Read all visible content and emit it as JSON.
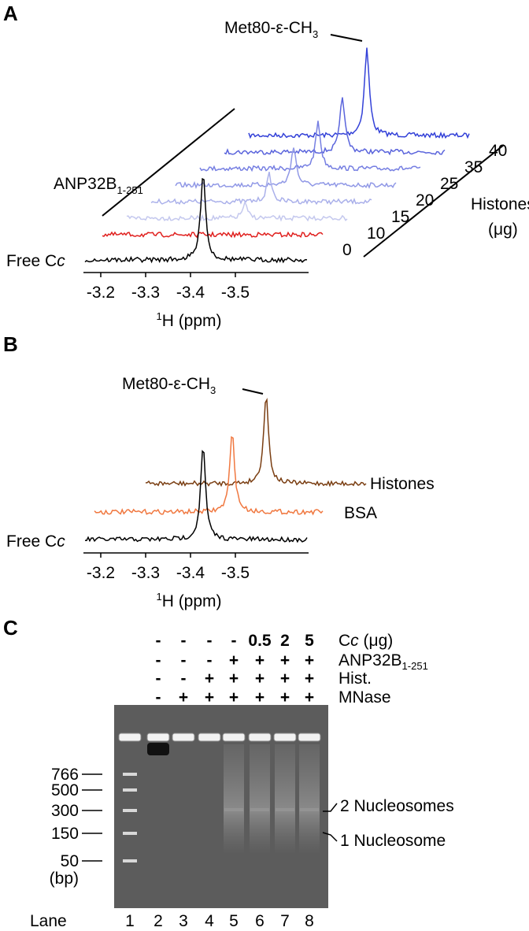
{
  "panel_a": {
    "label": "A",
    "peak": {
      "text": "Met80-ε-CH",
      "sub": "3"
    },
    "protein": {
      "text": "ANP32B",
      "sub": "1-251"
    },
    "free": {
      "text": "Free C",
      "italic": "c"
    },
    "amounts": [
      "0",
      "10",
      "15",
      "20",
      "25",
      "35",
      "40"
    ],
    "amount_title": [
      "Histones",
      "(μg)"
    ],
    "axis_ticks": [
      "-3.2",
      "-3.3",
      "-3.4",
      "-3.5"
    ],
    "axis_title": {
      "sup": "1",
      "text": "H (ppm)"
    }
  },
  "panel_b": {
    "label": "B",
    "peak": {
      "text": "Met80-ε-CH",
      "sub": "3"
    },
    "free": {
      "text": "Free C",
      "italic": "c"
    },
    "traces": [
      "BSA",
      "Histones"
    ],
    "axis_ticks": [
      "-3.2",
      "-3.3",
      "-3.4",
      "-3.5"
    ],
    "axis_title": {
      "sup": "1",
      "text": "H (ppm)"
    }
  },
  "panel_c": {
    "label": "C",
    "rows": [
      {
        "name": {
          "text": "C",
          "italic": "c",
          "rest": " (μg)"
        },
        "lanes": [
          "-",
          "-",
          "-",
          "-",
          "0.5",
          "2",
          "5"
        ]
      },
      {
        "name": {
          "text": "ANP32B",
          "sub": "1-251"
        },
        "lanes": [
          "-",
          "-",
          "-",
          "+",
          "+",
          "+",
          "+"
        ]
      },
      {
        "name": {
          "text": "Hist."
        },
        "lanes": [
          "-",
          "-",
          "+",
          "+",
          "+",
          "+",
          "+"
        ]
      },
      {
        "name": {
          "text": "MNase"
        },
        "lanes": [
          "-",
          "+",
          "+",
          "+",
          "+",
          "+",
          "+"
        ]
      }
    ],
    "markers": [
      "766",
      "500",
      "300",
      "150",
      "50"
    ],
    "unit": "(bp)",
    "bands": [
      "2 Nucleosomes",
      "1 Nucleosome"
    ],
    "lane_title": "Lane",
    "lanes": [
      "1",
      "2",
      "3",
      "4",
      "5",
      "6",
      "7",
      "8"
    ]
  }
}
